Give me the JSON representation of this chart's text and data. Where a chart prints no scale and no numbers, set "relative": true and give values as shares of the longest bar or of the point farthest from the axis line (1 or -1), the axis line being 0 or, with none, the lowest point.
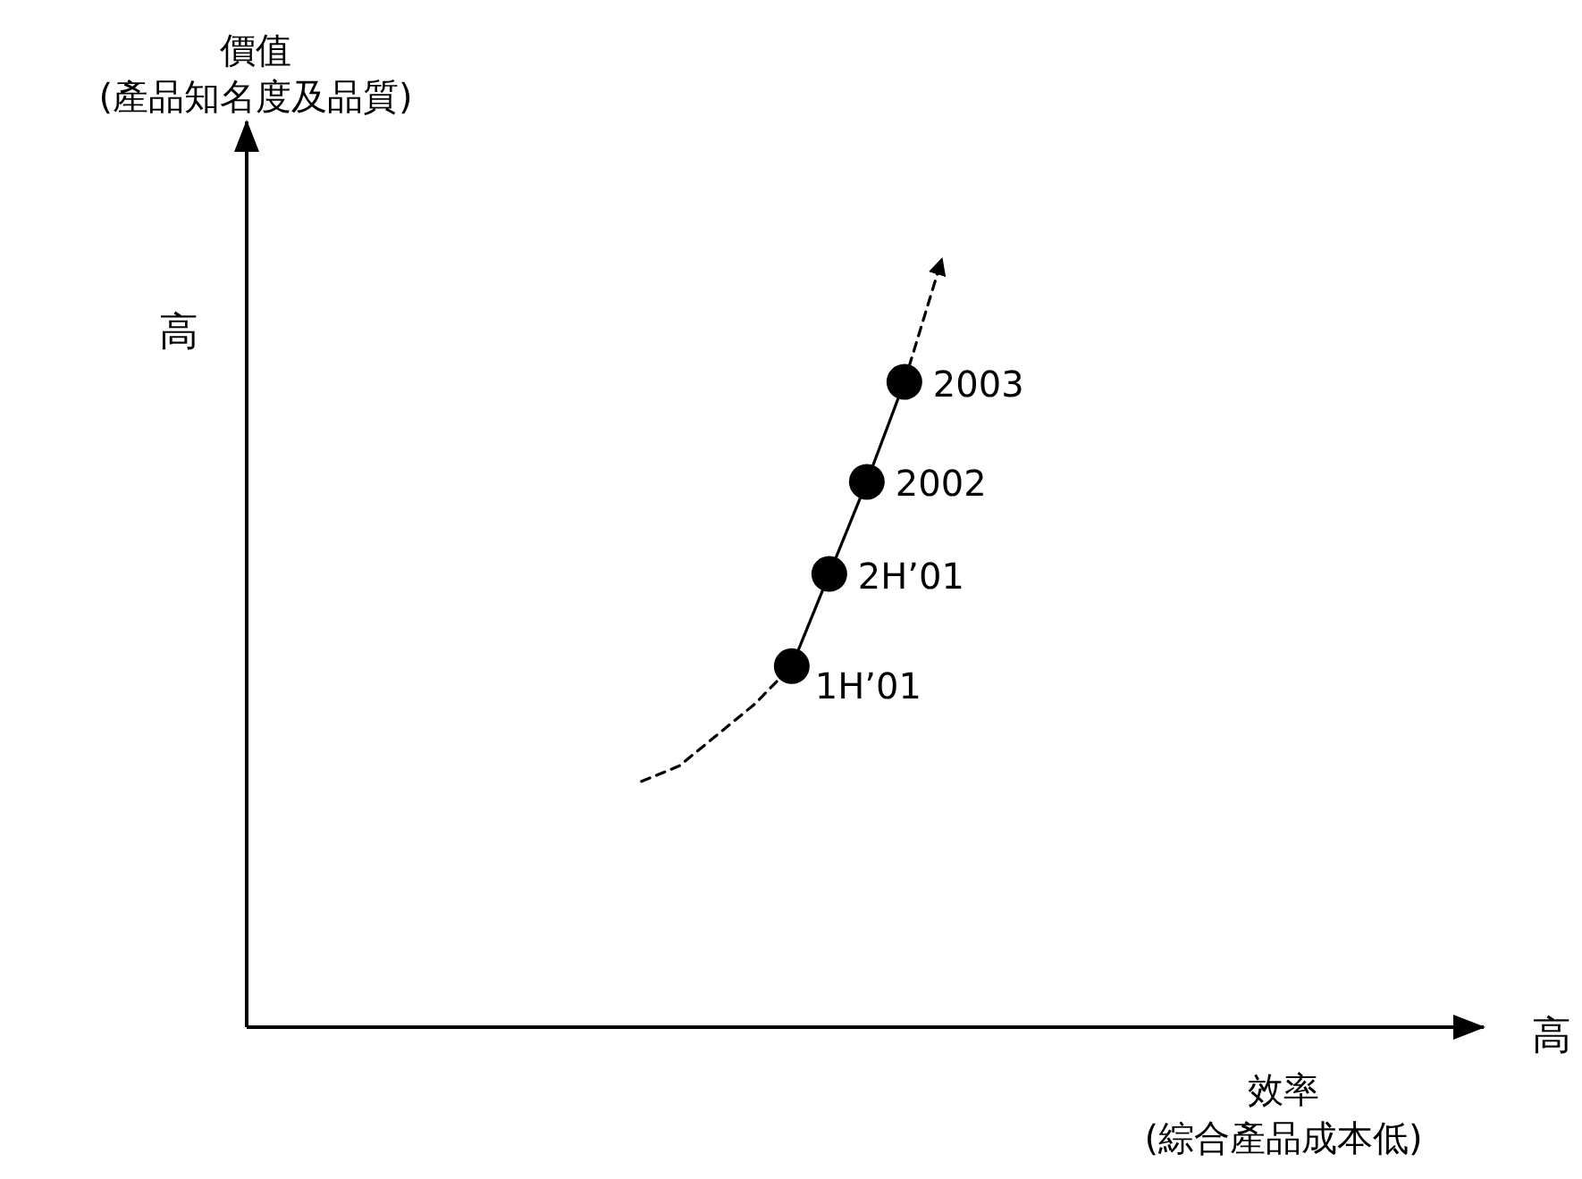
{
  "chart_data": {
    "type": "line",
    "relative": true,
    "categories": [
      null,
      null,
      null,
      null,
      null,
      null,
      null,
      null,
      null
    ],
    "series": [
      {
        "color": "#000000",
        "line_style": "dashed",
        "values": [
          0.32,
          0.34,
          0.38,
          0.42,
          0.47,
          null,
          null,
          null,
          null
        ]
      },
      {
        "color": "#000000",
        "line_style": "solid",
        "marker": "circle",
        "values": [
          null,
          null,
          null,
          null,
          0.47,
          0.59,
          0.71,
          0.84,
          null
        ]
      },
      {
        "color": "#000000",
        "line_style": "dashed",
        "values": [
          null,
          null,
          null,
          null,
          null,
          null,
          null,
          0.84,
          1.0
        ]
      }
    ],
    "annotations": [
      "價值\n(產品知名度及品質)",
      "效率\n(綜合產品成本低)",
      "高",
      "高",
      "1H’01",
      "2H’01",
      "2002",
      "2003"
    ]
  }
}
